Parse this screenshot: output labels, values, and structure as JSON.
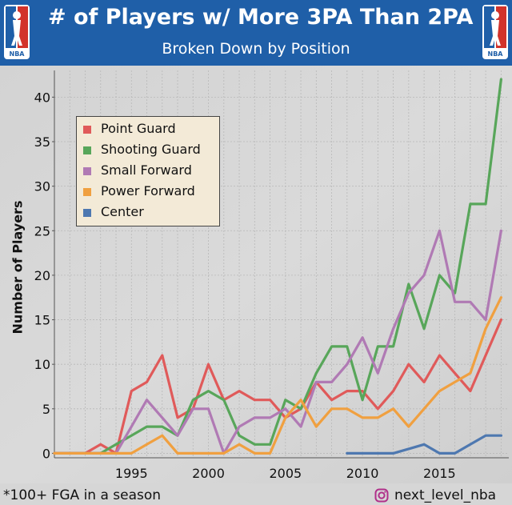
{
  "header": {
    "title": "# of Players w/ More 3PA Than 2PA",
    "subtitle": "Broken Down by Position",
    "logo_text": "NBA"
  },
  "footer": {
    "footnote": "*100+ FGA in a season",
    "handle": "next_level_nba"
  },
  "icons": [
    "nba-logo-icon",
    "instagram-icon"
  ],
  "colors": {
    "header_bg": "#1f5fa8",
    "legend_bg": "#f3ead7",
    "point_guard": "#e05a5a",
    "shooting_guard": "#58a65a",
    "small_forward": "#b07ab4",
    "power_forward": "#f0a040",
    "center": "#4e78b0"
  },
  "chart_data": {
    "type": "line",
    "title": "# of Players w/ More 3PA Than 2PA",
    "subtitle": "Broken Down by Position",
    "xlabel": "",
    "ylabel": "Number of Players",
    "xlim": [
      1990,
      2019.5
    ],
    "ylim": [
      -0.5,
      43
    ],
    "x_ticks": [
      1995,
      2000,
      2005,
      2010,
      2015
    ],
    "y_ticks": [
      0,
      5,
      10,
      15,
      20,
      25,
      30,
      35,
      40
    ],
    "grid": true,
    "legend_position": "top-left",
    "series": [
      {
        "name": "Point Guard",
        "color": "#e05a5a",
        "x": [
          1990,
          1991,
          1992,
          1993,
          1994,
          1995,
          1996,
          1997,
          1998,
          1999,
          2000,
          2001,
          2002,
          2003,
          2004,
          2005,
          2006,
          2007,
          2008,
          2009,
          2010,
          2011,
          2012,
          2013,
          2014,
          2015,
          2016,
          2017,
          2018,
          2019
        ],
        "y": [
          0,
          0,
          0,
          1,
          0,
          7,
          8,
          11,
          4,
          5,
          10,
          6,
          7,
          6,
          6,
          4,
          5,
          8,
          6,
          7,
          7,
          5,
          7,
          10,
          8,
          11,
          9,
          7,
          11,
          15
        ]
      },
      {
        "name": "Shooting Guard",
        "color": "#58a65a",
        "x": [
          1990,
          1991,
          1992,
          1993,
          1994,
          1995,
          1996,
          1997,
          1998,
          1999,
          2000,
          2001,
          2002,
          2003,
          2004,
          2005,
          2006,
          2007,
          2008,
          2009,
          2010,
          2011,
          2012,
          2013,
          2014,
          2015,
          2016,
          2017,
          2018,
          2019
        ],
        "y": [
          0,
          0,
          0,
          0,
          1,
          2,
          3,
          3,
          2,
          6,
          7,
          6,
          2,
          1,
          1,
          6,
          5,
          9,
          12,
          12,
          6,
          12,
          12,
          19,
          14,
          20,
          18,
          28,
          28,
          42
        ]
      },
      {
        "name": "Small Forward",
        "color": "#b07ab4",
        "x": [
          1990,
          1991,
          1992,
          1993,
          1994,
          1995,
          1996,
          1997,
          1998,
          1999,
          2000,
          2001,
          2002,
          2003,
          2004,
          2005,
          2006,
          2007,
          2008,
          2009,
          2010,
          2011,
          2012,
          2013,
          2014,
          2015,
          2016,
          2017,
          2018,
          2019
        ],
        "y": [
          0,
          0,
          0,
          0,
          0,
          3,
          6,
          4,
          2,
          5,
          5,
          0,
          3,
          4,
          4,
          5,
          3,
          8,
          8,
          10,
          13,
          9,
          14,
          18,
          20,
          25,
          17,
          17,
          15,
          25
        ]
      },
      {
        "name": "Power Forward",
        "color": "#f0a040",
        "x": [
          1990,
          1991,
          1992,
          1993,
          1994,
          1995,
          1996,
          1997,
          1998,
          1999,
          2000,
          2001,
          2002,
          2003,
          2004,
          2005,
          2006,
          2007,
          2008,
          2009,
          2010,
          2011,
          2012,
          2013,
          2014,
          2015,
          2016,
          2017,
          2018,
          2019
        ],
        "y": [
          0,
          0,
          0,
          0,
          0,
          0,
          1,
          2,
          0,
          0,
          0,
          0,
          1,
          0,
          0,
          4,
          6,
          3,
          5,
          5,
          4,
          4,
          5,
          3,
          5,
          7,
          8,
          9,
          14,
          17.5
        ]
      },
      {
        "name": "Center",
        "color": "#4e78b0",
        "x": [
          2009,
          2010,
          2011,
          2012,
          2013,
          2014,
          2015,
          2016,
          2017,
          2018,
          2019
        ],
        "y": [
          0,
          0,
          0,
          0,
          0.5,
          1,
          0,
          0,
          1,
          2,
          2
        ]
      }
    ]
  }
}
